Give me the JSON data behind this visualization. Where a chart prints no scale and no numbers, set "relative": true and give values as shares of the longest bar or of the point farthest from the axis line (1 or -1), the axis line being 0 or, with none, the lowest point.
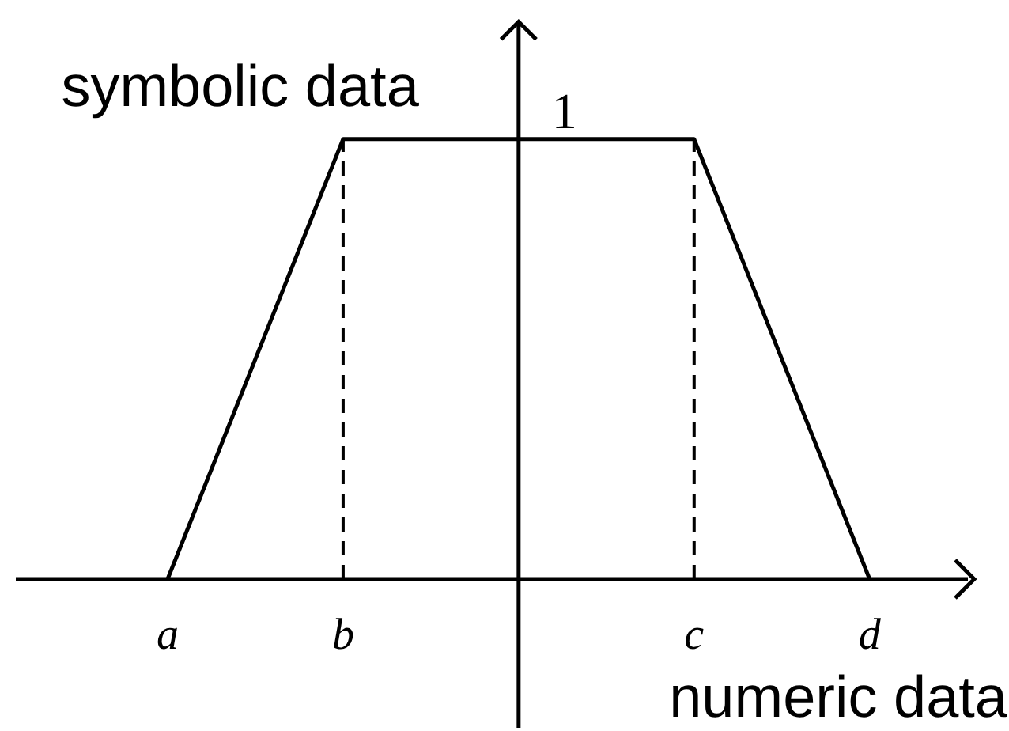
{
  "chart_data": {
    "type": "line",
    "relative": true,
    "categories": [
      "a",
      "b",
      null,
      "c",
      "d"
    ],
    "values": [
      0,
      1,
      1,
      1,
      0
    ],
    "color": "#000000",
    "xlabel": "numeric data",
    "ylabel": "symbolic data",
    "annotations": [
      {
        "text": "1",
        "y": 1
      }
    ],
    "ref_lines": [
      {
        "axis": "x",
        "value": "b",
        "line_style": "dashed",
        "color": "#000000"
      },
      {
        "axis": "x",
        "value": "c",
        "line_style": "dashed",
        "color": "#000000"
      }
    ],
    "marker": "none",
    "line_style": "solid"
  }
}
